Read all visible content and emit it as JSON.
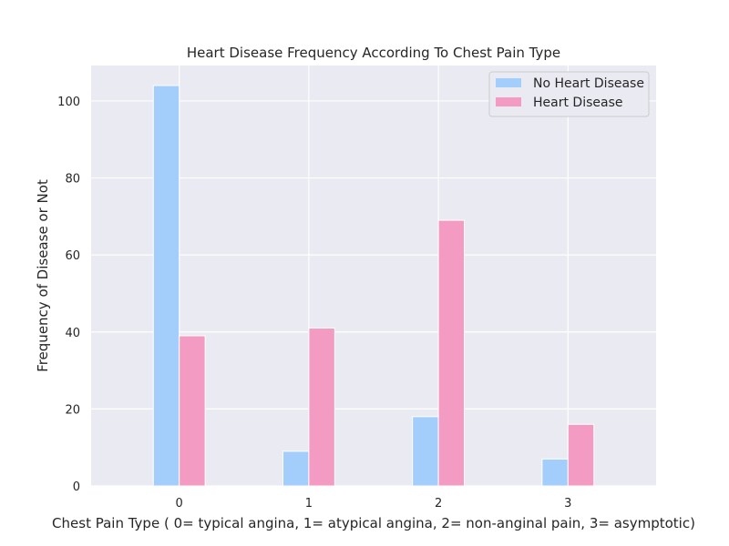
{
  "chart_data": {
    "type": "bar",
    "title": "Heart Disease Frequency According To Chest Pain Type",
    "xlabel": "Chest Pain Type ( 0= typical angina, 1= atypical angina, 2= non-anginal pain, 3= asymptotic)",
    "ylabel": "Frequency of Disease or Not",
    "categories": [
      "0",
      "1",
      "2",
      "3"
    ],
    "series": [
      {
        "name": "No Heart Disease",
        "values": [
          104,
          9,
          18,
          7
        ],
        "color": "#a3cefb"
      },
      {
        "name": "Heart Disease",
        "values": [
          39,
          41,
          69,
          16
        ],
        "color": "#f39bc2"
      }
    ],
    "yticks": [
      0,
      20,
      40,
      60,
      80,
      100
    ],
    "ylim": [
      0,
      109.2
    ],
    "grid": true,
    "legend": "top-right",
    "background": "#eaeaf2"
  }
}
